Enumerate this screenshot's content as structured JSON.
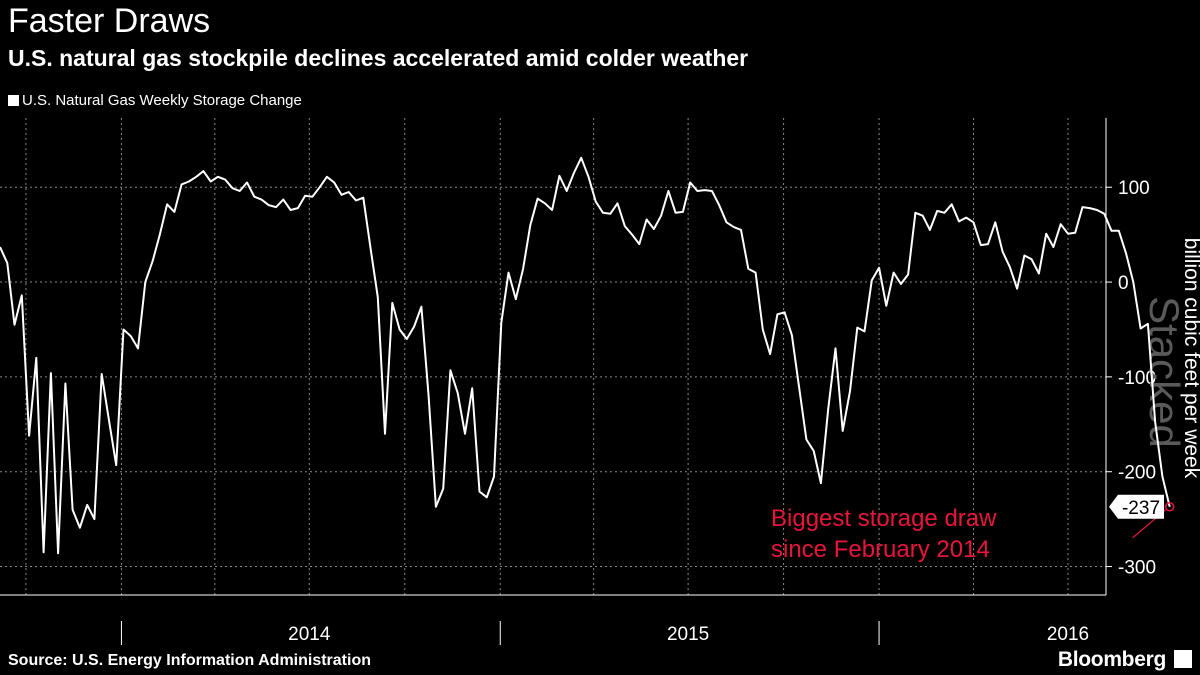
{
  "header": {
    "title": "Faster Draws",
    "subtitle": "U.S. natural gas stockpile declines accelerated amid colder weather"
  },
  "footer": {
    "source": "Source: U.S. Energy Information Administration",
    "brand": "Bloomberg"
  },
  "watermark": "Stacked",
  "colors": {
    "line": "#ffffff",
    "annotation": "#e8163b",
    "grid": "#888888",
    "background": "#000000"
  },
  "chart_data": {
    "type": "line",
    "series": [
      {
        "name": "U.S. Natural Gas Weekly Storage Change",
        "start_date": "2013-09-06",
        "interval_days": 7,
        "values": [
          37,
          20,
          -45,
          -14,
          -162,
          -80,
          -285,
          -96,
          -286,
          -107,
          -240,
          -259,
          -235,
          -250,
          -97,
          -146,
          -193,
          -50,
          -57,
          -70,
          0,
          22,
          50,
          82,
          74,
          103,
          106,
          111,
          117,
          106,
          111,
          108,
          99,
          96,
          105,
          90,
          87,
          81,
          79,
          87,
          76,
          78,
          91,
          90,
          100,
          111,
          105,
          92,
          95,
          86,
          89,
          36,
          -16,
          -160,
          -22,
          -50,
          -60,
          -47,
          -26,
          -120,
          -237,
          -218,
          -93,
          -117,
          -160,
          -112,
          -221,
          -227,
          -205,
          -43,
          10,
          -18,
          14,
          60,
          88,
          83,
          76,
          112,
          96,
          115,
          131,
          111,
          85,
          73,
          72,
          83,
          59,
          50,
          40,
          66,
          56,
          70,
          96,
          73,
          74,
          105,
          96,
          97,
          96,
          81,
          63,
          58,
          55,
          14,
          10,
          -50,
          -76,
          -34,
          -32,
          -56,
          -111,
          -166,
          -178,
          -212,
          -134,
          -70,
          -157,
          -115,
          -48,
          -52,
          2,
          15,
          -25,
          10,
          -2,
          8,
          73,
          70,
          55,
          75,
          73,
          82,
          64,
          68,
          63,
          39,
          40,
          63,
          32,
          16,
          -7,
          28,
          24,
          9,
          51,
          37,
          61,
          51,
          52,
          79,
          78,
          76,
          72,
          54,
          54,
          30,
          0,
          -49,
          -44,
          -147,
          -205,
          -237
        ]
      }
    ],
    "x_tick_labels": [
      "2014",
      "2015",
      "2016"
    ],
    "y_ticks": [
      100,
      0,
      -100,
      -200,
      -300
    ],
    "ylim": [
      -330,
      173
    ],
    "ylabel": "billion cubic feet per week",
    "last_value_label": "-237",
    "annotation": {
      "text_lines": [
        "Biggest storage draw",
        "since February 2014"
      ]
    },
    "legend_position": "top-left",
    "grid": true
  }
}
